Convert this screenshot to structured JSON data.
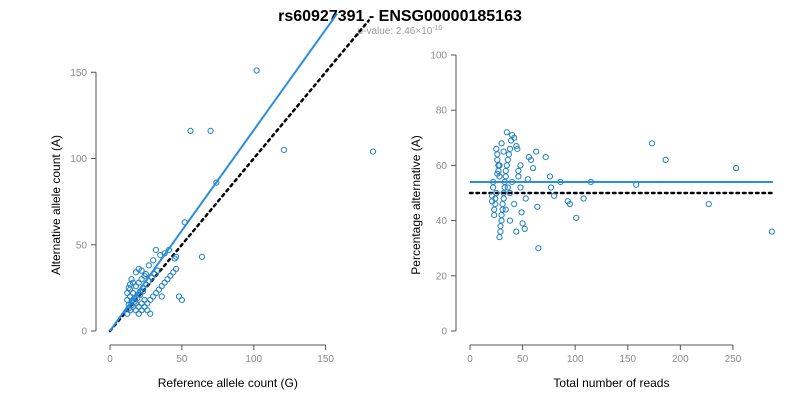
{
  "title": "rs60927391 - ENSG00000185163",
  "subtitle": {
    "prefix": "p-value: 2.46×10",
    "exponent": "-10"
  },
  "colors": {
    "points": "#1f7fc4",
    "fit_line": "#2a8ee0",
    "reference_line": "#000000",
    "axis": "#555555"
  },
  "chart_data": [
    {
      "type": "scatter",
      "xlabel": "Reference allele count (G)",
      "ylabel": "Alternative allele count (A)",
      "xlim": [
        0,
        160
      ],
      "ylim": [
        0,
        160
      ],
      "x_ticks": [
        0,
        50,
        100,
        150
      ],
      "y_ticks": [
        0,
        50,
        100,
        150
      ],
      "fit_line": {
        "x": [
          0,
          158
        ],
        "y": [
          0,
          184
        ]
      },
      "reference_line": {
        "x": [
          0,
          180
        ],
        "y": [
          0,
          180
        ],
        "style": "dotted"
      },
      "points": [
        [
          102,
          151
        ],
        [
          56,
          116
        ],
        [
          70,
          116
        ],
        [
          121,
          105
        ],
        [
          183,
          104
        ],
        [
          74,
          86
        ],
        [
          52,
          63
        ],
        [
          64,
          43
        ],
        [
          45,
          42
        ],
        [
          38,
          45
        ],
        [
          32,
          47
        ],
        [
          35,
          44
        ],
        [
          30,
          41
        ],
        [
          27,
          38
        ],
        [
          25,
          33
        ],
        [
          22,
          35
        ],
        [
          20,
          36
        ],
        [
          18,
          34
        ],
        [
          16,
          28
        ],
        [
          15,
          30
        ],
        [
          14,
          27
        ],
        [
          13,
          25
        ],
        [
          12,
          22
        ],
        [
          14,
          20
        ],
        [
          16,
          18
        ],
        [
          18,
          16
        ],
        [
          20,
          14
        ],
        [
          22,
          12
        ],
        [
          24,
          14
        ],
        [
          26,
          16
        ],
        [
          28,
          18
        ],
        [
          30,
          20
        ],
        [
          32,
          22
        ],
        [
          34,
          24
        ],
        [
          36,
          26
        ],
        [
          38,
          28
        ],
        [
          40,
          30
        ],
        [
          42,
          32
        ],
        [
          44,
          34
        ],
        [
          46,
          36
        ],
        [
          48,
          20
        ],
        [
          50,
          18
        ],
        [
          12,
          10
        ],
        [
          14,
          12
        ],
        [
          16,
          14
        ],
        [
          18,
          12
        ],
        [
          20,
          10
        ],
        [
          22,
          16
        ],
        [
          24,
          18
        ],
        [
          26,
          12
        ],
        [
          28,
          10
        ],
        [
          13,
          15
        ],
        [
          15,
          17
        ],
        [
          17,
          19
        ],
        [
          19,
          21
        ],
        [
          21,
          23
        ],
        [
          23,
          25
        ],
        [
          25,
          27
        ],
        [
          27,
          29
        ],
        [
          29,
          31
        ],
        [
          31,
          33
        ],
        [
          33,
          35
        ],
        [
          12,
          18
        ],
        [
          14,
          24
        ],
        [
          16,
          22
        ],
        [
          18,
          26
        ],
        [
          20,
          28
        ],
        [
          22,
          30
        ],
        [
          24,
          32
        ],
        [
          13,
          13
        ],
        [
          15,
          15
        ],
        [
          17,
          17
        ],
        [
          19,
          19
        ],
        [
          21,
          21
        ],
        [
          23,
          23
        ],
        [
          36,
          20
        ],
        [
          46,
          43
        ],
        [
          41,
          47
        ]
      ]
    },
    {
      "type": "scatter",
      "xlabel": "Total number of reads",
      "ylabel": "Percentage alternative (A)",
      "xlim": [
        0,
        290
      ],
      "ylim": [
        0,
        100
      ],
      "x_ticks": [
        0,
        50,
        100,
        150,
        200,
        250
      ],
      "y_ticks": [
        0,
        20,
        40,
        60,
        80,
        100
      ],
      "fit_line": {
        "x": [
          0,
          288
        ],
        "y": [
          54,
          54
        ]
      },
      "reference_line": {
        "x": [
          0,
          288
        ],
        "y": [
          50,
          50
        ],
        "style": "dotted"
      },
      "points": [
        [
          253,
          59
        ],
        [
          287,
          36
        ],
        [
          173,
          68
        ],
        [
          186,
          62
        ],
        [
          227,
          46
        ],
        [
          158,
          53
        ],
        [
          115,
          54
        ],
        [
          108,
          48
        ],
        [
          101,
          41
        ],
        [
          95,
          46
        ],
        [
          93,
          47
        ],
        [
          86,
          54
        ],
        [
          80,
          49
        ],
        [
          77,
          52
        ],
        [
          76,
          56
        ],
        [
          72,
          63
        ],
        [
          65,
          30
        ],
        [
          64,
          45
        ],
        [
          63,
          65
        ],
        [
          60,
          59
        ],
        [
          58,
          62
        ],
        [
          56,
          63
        ],
        [
          55,
          55
        ],
        [
          53,
          48
        ],
        [
          52,
          37
        ],
        [
          50,
          39
        ],
        [
          49,
          43
        ],
        [
          48,
          60
        ],
        [
          46,
          58
        ],
        [
          45,
          66
        ],
        [
          44,
          67
        ],
        [
          42,
          70
        ],
        [
          40,
          71
        ],
        [
          39,
          69
        ],
        [
          38,
          66
        ],
        [
          37,
          64
        ],
        [
          36,
          62
        ],
        [
          35,
          60
        ],
        [
          35,
          72
        ],
        [
          34,
          58
        ],
        [
          34,
          56
        ],
        [
          33,
          54
        ],
        [
          33,
          52
        ],
        [
          32,
          50
        ],
        [
          32,
          48
        ],
        [
          31,
          46
        ],
        [
          31,
          44
        ],
        [
          30,
          42
        ],
        [
          30,
          40
        ],
        [
          29,
          38
        ],
        [
          29,
          36
        ],
        [
          28,
          34
        ],
        [
          28,
          56
        ],
        [
          27,
          58
        ],
        [
          27,
          60
        ],
        [
          26,
          62
        ],
        [
          26,
          64
        ],
        [
          25,
          66
        ],
        [
          25,
          50
        ],
        [
          24,
          48
        ],
        [
          24,
          46
        ],
        [
          23,
          44
        ],
        [
          23,
          42
        ],
        [
          22,
          52
        ],
        [
          22,
          54
        ],
        [
          21,
          47
        ],
        [
          21,
          49
        ],
        [
          38,
          50
        ],
        [
          36,
          52
        ],
        [
          34,
          44
        ],
        [
          40,
          54
        ],
        [
          42,
          46
        ],
        [
          44,
          36
        ],
        [
          38,
          40
        ],
        [
          46,
          56
        ],
        [
          48,
          52
        ],
        [
          30,
          68
        ],
        [
          32,
          65
        ],
        [
          28,
          60
        ],
        [
          26,
          57
        ]
      ]
    }
  ]
}
